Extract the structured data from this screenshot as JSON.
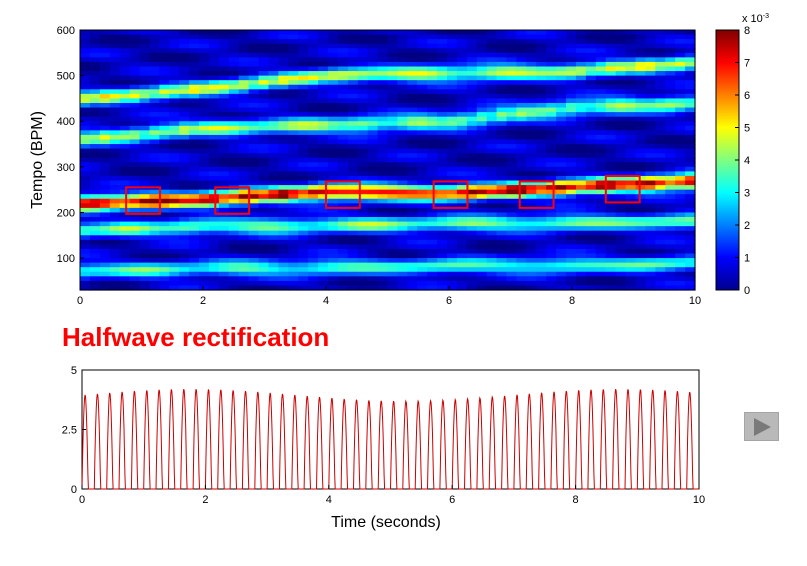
{
  "section_title": "Halfwave rectification",
  "colors": {
    "highlight": "#ff0000",
    "signal": "#cc0000",
    "button": "#b9b9b9"
  },
  "chart_data": [
    {
      "type": "heatmap",
      "colormap": "jet",
      "xlim": [
        0,
        10
      ],
      "ylim": [
        30,
        600
      ],
      "ylabel": "Tempo (BPM)",
      "x_ticks": [
        0,
        2,
        4,
        6,
        8,
        10
      ],
      "y_ticks": [
        100,
        200,
        300,
        400,
        500,
        600
      ],
      "colorbar": {
        "range": [
          0,
          8
        ],
        "ticks": [
          0,
          1,
          2,
          3,
          4,
          5,
          6,
          7,
          8
        ],
        "exponent_label": "x 10",
        "exponent_power": "-3"
      },
      "ridges": [
        {
          "intensity": 0.95,
          "tempo": [
            {
              "x": 0,
              "y": 220
            },
            {
              "x": 2,
              "y": 228
            },
            {
              "x": 4,
              "y": 245
            },
            {
              "x": 6,
              "y": 242
            },
            {
              "x": 8,
              "y": 255
            },
            {
              "x": 10,
              "y": 268
            }
          ]
        },
        {
          "intensity": 0.55,
          "tempo": [
            {
              "x": 0,
              "y": 448
            },
            {
              "x": 2,
              "y": 470
            },
            {
              "x": 4,
              "y": 500
            },
            {
              "x": 6,
              "y": 505
            },
            {
              "x": 8,
              "y": 510
            },
            {
              "x": 10,
              "y": 528
            }
          ]
        },
        {
          "intensity": 0.5,
          "tempo": [
            {
              "x": 0,
              "y": 360
            },
            {
              "x": 2,
              "y": 385
            },
            {
              "x": 4,
              "y": 390
            },
            {
              "x": 6,
              "y": 400
            },
            {
              "x": 8,
              "y": 430
            },
            {
              "x": 10,
              "y": 440
            }
          ]
        },
        {
          "intensity": 0.45,
          "tempo": [
            {
              "x": 0,
              "y": 160
            },
            {
              "x": 2,
              "y": 168
            },
            {
              "x": 4,
              "y": 172
            },
            {
              "x": 6,
              "y": 175
            },
            {
              "x": 8,
              "y": 178
            },
            {
              "x": 10,
              "y": 180
            }
          ]
        },
        {
          "intensity": 0.4,
          "tempo": [
            {
              "x": 0,
              "y": 72
            },
            {
              "x": 2,
              "y": 76
            },
            {
              "x": 4,
              "y": 80
            },
            {
              "x": 6,
              "y": 82
            },
            {
              "x": 8,
              "y": 84
            },
            {
              "x": 10,
              "y": 88
            }
          ]
        }
      ],
      "markers": [
        {
          "x": [
            0.75,
            1.3
          ],
          "y": [
            197,
            255
          ]
        },
        {
          "x": [
            2.2,
            2.75
          ],
          "y": [
            197,
            255
          ]
        },
        {
          "x": [
            4.0,
            4.55
          ],
          "y": [
            210,
            268
          ]
        },
        {
          "x": [
            5.75,
            6.3
          ],
          "y": [
            210,
            268
          ]
        },
        {
          "x": [
            7.15,
            7.7
          ],
          "y": [
            210,
            268
          ]
        },
        {
          "x": [
            8.55,
            9.1
          ],
          "y": [
            222,
            280
          ]
        }
      ]
    },
    {
      "type": "line",
      "xlabel": "Time (seconds)",
      "xlim": [
        0,
        10
      ],
      "ylim": [
        0,
        5
      ],
      "x_ticks": [
        0,
        2,
        4,
        6,
        8,
        10
      ],
      "y_ticks": [
        "0",
        "2.5",
        "5"
      ],
      "signal": {
        "period": 0.2,
        "peak": 4.2
      }
    }
  ]
}
